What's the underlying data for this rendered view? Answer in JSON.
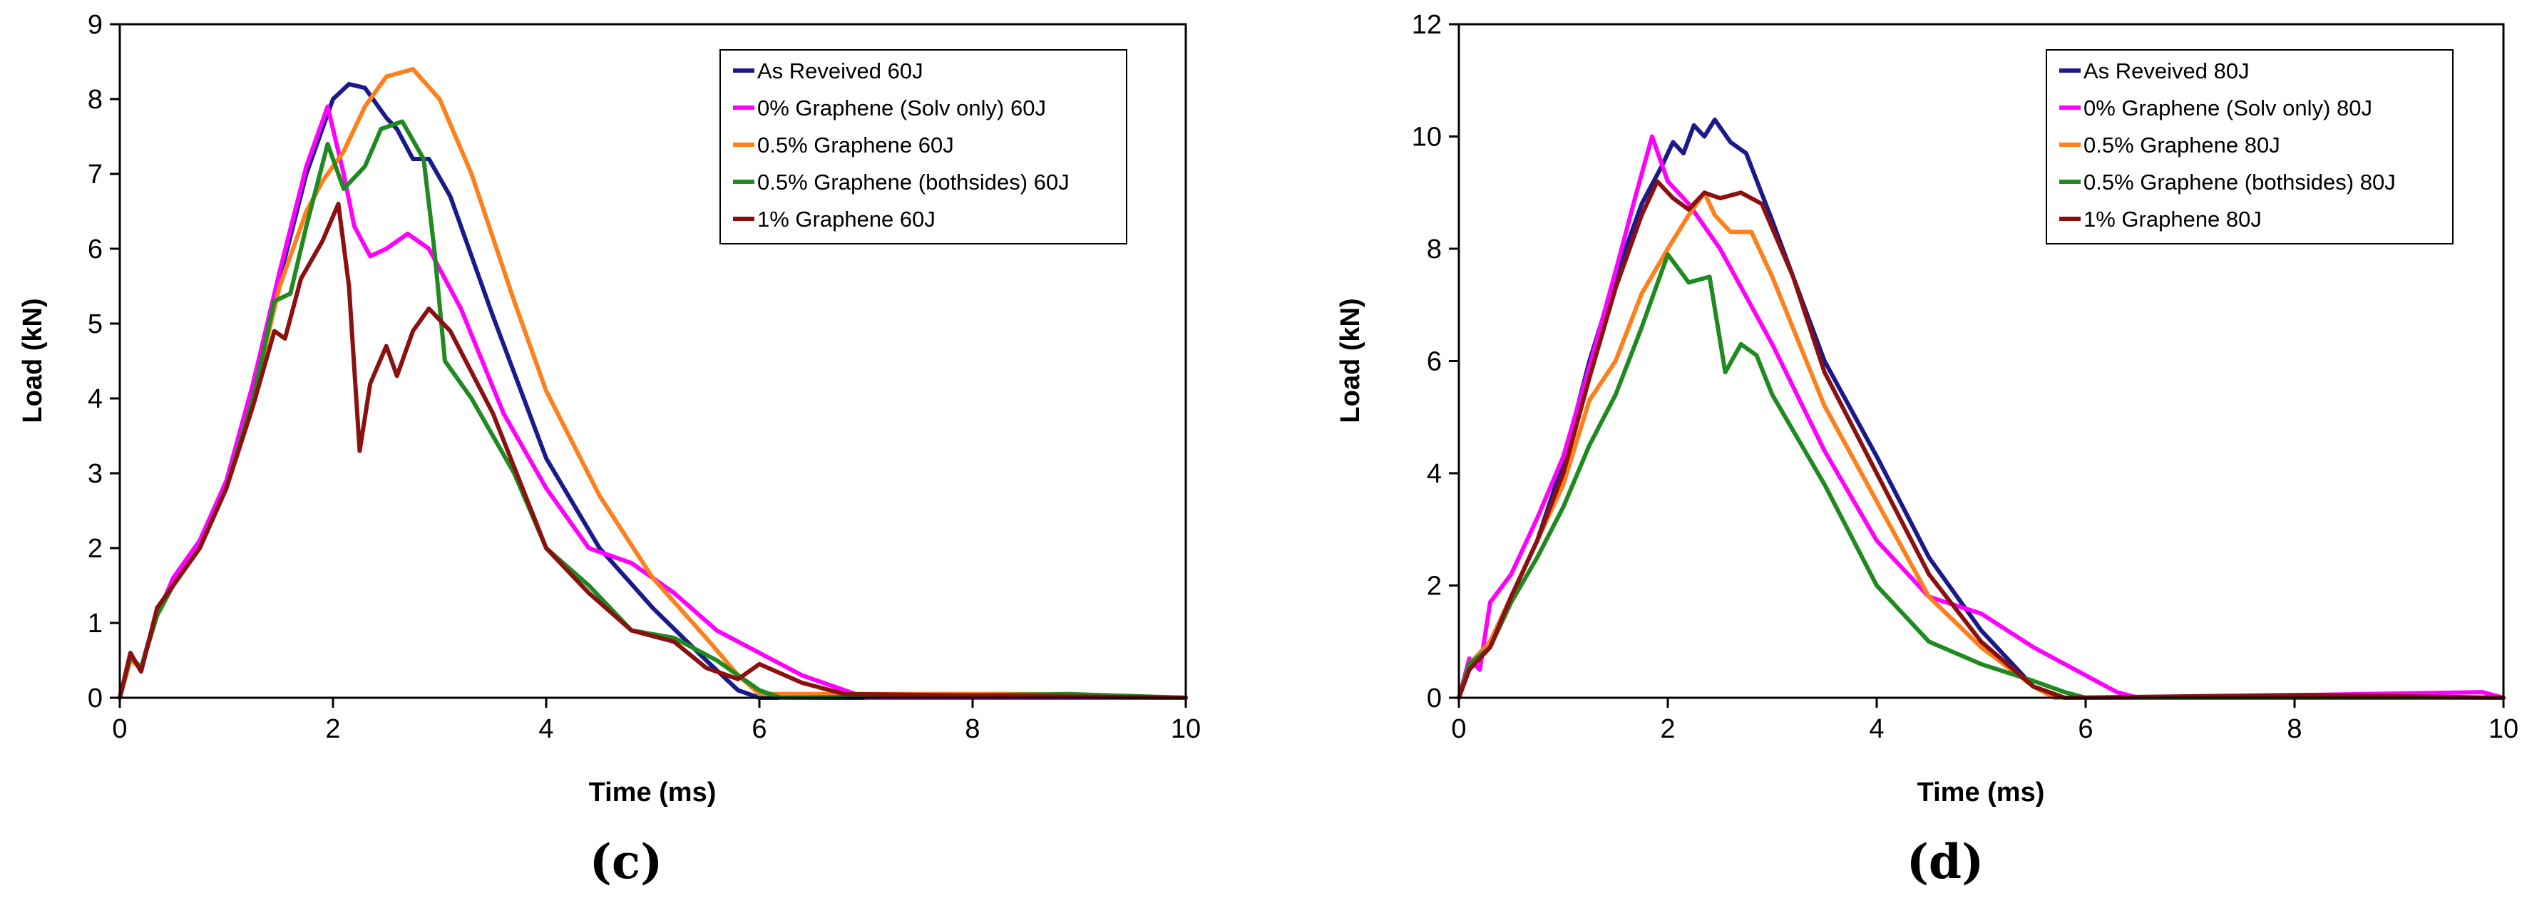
{
  "chart_data": [
    {
      "type": "line",
      "panel_label": "(c)",
      "xlabel": "Time (ms)",
      "ylabel": "Load (kN)",
      "xlim": [
        0,
        10
      ],
      "ylim": [
        0,
        9
      ],
      "xticks": [
        0,
        2,
        4,
        6,
        8,
        10
      ],
      "yticks": [
        0,
        1,
        2,
        3,
        4,
        5,
        6,
        7,
        8,
        9
      ],
      "grid": false,
      "legend_position": "top-right",
      "series": [
        {
          "name": "As Reveived 60J",
          "color": "#1a1a8c",
          "points": [
            [
              0,
              0
            ],
            [
              0.1,
              0.55
            ],
            [
              0.2,
              0.4
            ],
            [
              0.35,
              1.15
            ],
            [
              0.5,
              1.5
            ],
            [
              0.75,
              2.0
            ],
            [
              1.0,
              2.8
            ],
            [
              1.25,
              4.0
            ],
            [
              1.5,
              5.6
            ],
            [
              1.75,
              7.0
            ],
            [
              2.0,
              8.0
            ],
            [
              2.15,
              8.2
            ],
            [
              2.3,
              8.15
            ],
            [
              2.5,
              7.75
            ],
            [
              2.6,
              7.6
            ],
            [
              2.75,
              7.2
            ],
            [
              2.9,
              7.2
            ],
            [
              3.1,
              6.7
            ],
            [
              3.5,
              5.1
            ],
            [
              4.0,
              3.2
            ],
            [
              4.5,
              2.0
            ],
            [
              5.0,
              1.2
            ],
            [
              5.5,
              0.5
            ],
            [
              5.8,
              0.1
            ],
            [
              6.0,
              0.0
            ],
            [
              10,
              0.0
            ]
          ]
        },
        {
          "name": "0% Graphene (Solv only) 60J",
          "color": "#ff00ff",
          "points": [
            [
              0,
              0
            ],
            [
              0.1,
              0.5
            ],
            [
              0.2,
              0.4
            ],
            [
              0.35,
              1.1
            ],
            [
              0.5,
              1.6
            ],
            [
              0.75,
              2.1
            ],
            [
              1.0,
              2.9
            ],
            [
              1.25,
              4.2
            ],
            [
              1.5,
              5.7
            ],
            [
              1.75,
              7.1
            ],
            [
              1.95,
              7.9
            ],
            [
              2.1,
              7.0
            ],
            [
              2.2,
              6.3
            ],
            [
              2.35,
              5.9
            ],
            [
              2.5,
              6.0
            ],
            [
              2.7,
              6.2
            ],
            [
              2.9,
              6.0
            ],
            [
              3.2,
              5.2
            ],
            [
              3.6,
              3.8
            ],
            [
              4.0,
              2.8
            ],
            [
              4.4,
              2.0
            ],
            [
              4.8,
              1.8
            ],
            [
              5.2,
              1.4
            ],
            [
              5.6,
              0.9
            ],
            [
              6.0,
              0.6
            ],
            [
              6.4,
              0.3
            ],
            [
              6.8,
              0.1
            ],
            [
              7.0,
              0.0
            ],
            [
              10,
              0.0
            ]
          ]
        },
        {
          "name": "0.5% Graphene 60J",
          "color": "#ff7f1a",
          "points": [
            [
              0,
              0
            ],
            [
              0.1,
              0.5
            ],
            [
              0.2,
              0.4
            ],
            [
              0.35,
              1.1
            ],
            [
              0.5,
              1.5
            ],
            [
              0.75,
              2.0
            ],
            [
              1.0,
              2.8
            ],
            [
              1.25,
              4.0
            ],
            [
              1.5,
              5.5
            ],
            [
              1.75,
              6.5
            ],
            [
              1.9,
              6.9
            ],
            [
              2.1,
              7.3
            ],
            [
              2.3,
              7.9
            ],
            [
              2.5,
              8.3
            ],
            [
              2.75,
              8.4
            ],
            [
              3.0,
              8.0
            ],
            [
              3.3,
              7.0
            ],
            [
              3.7,
              5.3
            ],
            [
              4.0,
              4.1
            ],
            [
              4.5,
              2.7
            ],
            [
              5.0,
              1.6
            ],
            [
              5.5,
              0.8
            ],
            [
              5.8,
              0.3
            ],
            [
              6.0,
              0.05
            ],
            [
              8.5,
              0.05
            ],
            [
              10,
              0.0
            ]
          ]
        },
        {
          "name": "0.5% Graphene (bothsides) 60J",
          "color": "#1f8a1f",
          "points": [
            [
              0,
              0
            ],
            [
              0.1,
              0.55
            ],
            [
              0.2,
              0.4
            ],
            [
              0.35,
              1.1
            ],
            [
              0.5,
              1.5
            ],
            [
              0.75,
              2.0
            ],
            [
              1.0,
              2.8
            ],
            [
              1.25,
              4.0
            ],
            [
              1.45,
              5.3
            ],
            [
              1.6,
              5.4
            ],
            [
              1.75,
              6.3
            ],
            [
              1.95,
              7.4
            ],
            [
              2.1,
              6.8
            ],
            [
              2.3,
              7.1
            ],
            [
              2.45,
              7.6
            ],
            [
              2.65,
              7.7
            ],
            [
              2.85,
              7.2
            ],
            [
              2.95,
              6.0
            ],
            [
              3.05,
              4.5
            ],
            [
              3.3,
              4.0
            ],
            [
              3.7,
              3.0
            ],
            [
              4.0,
              2.0
            ],
            [
              4.4,
              1.5
            ],
            [
              4.8,
              0.9
            ],
            [
              5.2,
              0.8
            ],
            [
              5.6,
              0.5
            ],
            [
              6.0,
              0.1
            ],
            [
              6.2,
              0.0
            ],
            [
              8.9,
              0.05
            ],
            [
              10,
              0.0
            ]
          ]
        },
        {
          "name": "1% Graphene 60J",
          "color": "#8b1111",
          "points": [
            [
              0,
              0
            ],
            [
              0.1,
              0.6
            ],
            [
              0.2,
              0.35
            ],
            [
              0.35,
              1.2
            ],
            [
              0.5,
              1.5
            ],
            [
              0.75,
              2.0
            ],
            [
              1.0,
              2.8
            ],
            [
              1.25,
              3.9
            ],
            [
              1.45,
              4.9
            ],
            [
              1.55,
              4.8
            ],
            [
              1.7,
              5.6
            ],
            [
              1.9,
              6.1
            ],
            [
              2.05,
              6.6
            ],
            [
              2.15,
              5.5
            ],
            [
              2.25,
              3.3
            ],
            [
              2.35,
              4.2
            ],
            [
              2.5,
              4.7
            ],
            [
              2.6,
              4.3
            ],
            [
              2.75,
              4.9
            ],
            [
              2.9,
              5.2
            ],
            [
              3.1,
              4.9
            ],
            [
              3.5,
              3.8
            ],
            [
              4.0,
              2.0
            ],
            [
              4.4,
              1.4
            ],
            [
              4.8,
              0.9
            ],
            [
              5.2,
              0.75
            ],
            [
              5.5,
              0.4
            ],
            [
              5.8,
              0.25
            ],
            [
              6.0,
              0.45
            ],
            [
              6.4,
              0.2
            ],
            [
              6.8,
              0.05
            ],
            [
              10,
              0.0
            ]
          ]
        }
      ]
    },
    {
      "type": "line",
      "panel_label": "(d)",
      "xlabel": "Time (ms)",
      "ylabel": "Load (kN)",
      "xlim": [
        0,
        10
      ],
      "ylim": [
        0,
        12
      ],
      "xticks": [
        0,
        2,
        4,
        6,
        8,
        10
      ],
      "yticks": [
        0,
        2,
        4,
        6,
        8,
        10,
        12
      ],
      "grid": false,
      "legend_position": "top-right",
      "series": [
        {
          "name": "As Reveived 80J",
          "color": "#1a1a8c",
          "points": [
            [
              0,
              0
            ],
            [
              0.1,
              0.6
            ],
            [
              0.3,
              1.0
            ],
            [
              0.5,
              1.8
            ],
            [
              0.75,
              2.8
            ],
            [
              1.0,
              4.2
            ],
            [
              1.25,
              6.0
            ],
            [
              1.5,
              7.5
            ],
            [
              1.75,
              8.8
            ],
            [
              1.95,
              9.5
            ],
            [
              2.05,
              9.9
            ],
            [
              2.15,
              9.7
            ],
            [
              2.25,
              10.2
            ],
            [
              2.35,
              10.0
            ],
            [
              2.45,
              10.3
            ],
            [
              2.6,
              9.9
            ],
            [
              2.75,
              9.7
            ],
            [
              3.0,
              8.5
            ],
            [
              3.5,
              6.0
            ],
            [
              4.0,
              4.3
            ],
            [
              4.5,
              2.5
            ],
            [
              5.0,
              1.2
            ],
            [
              5.5,
              0.2
            ],
            [
              5.8,
              0.0
            ],
            [
              10,
              0.0
            ]
          ]
        },
        {
          "name": "0% Graphene (Solv only) 80J",
          "color": "#ff00ff",
          "points": [
            [
              0,
              0
            ],
            [
              0.1,
              0.7
            ],
            [
              0.2,
              0.5
            ],
            [
              0.3,
              1.7
            ],
            [
              0.5,
              2.2
            ],
            [
              0.75,
              3.2
            ],
            [
              1.0,
              4.3
            ],
            [
              1.25,
              5.9
            ],
            [
              1.5,
              7.6
            ],
            [
              1.7,
              9.0
            ],
            [
              1.85,
              10.0
            ],
            [
              2.0,
              9.2
            ],
            [
              2.2,
              8.8
            ],
            [
              2.5,
              8.0
            ],
            [
              3.0,
              6.3
            ],
            [
              3.5,
              4.4
            ],
            [
              4.0,
              2.8
            ],
            [
              4.5,
              1.8
            ],
            [
              5.0,
              1.5
            ],
            [
              5.5,
              0.9
            ],
            [
              6.0,
              0.4
            ],
            [
              6.3,
              0.1
            ],
            [
              6.5,
              0.0
            ],
            [
              9.8,
              0.1
            ],
            [
              10,
              0.0
            ]
          ]
        },
        {
          "name": "0.5% Graphene 80J",
          "color": "#ff7f1a",
          "points": [
            [
              0,
              0
            ],
            [
              0.1,
              0.6
            ],
            [
              0.3,
              1.0
            ],
            [
              0.5,
              1.8
            ],
            [
              0.75,
              2.8
            ],
            [
              1.0,
              3.8
            ],
            [
              1.25,
              5.3
            ],
            [
              1.5,
              6.0
            ],
            [
              1.75,
              7.2
            ],
            [
              2.0,
              8.0
            ],
            [
              2.2,
              8.6
            ],
            [
              2.35,
              9.0
            ],
            [
              2.45,
              8.6
            ],
            [
              2.6,
              8.3
            ],
            [
              2.8,
              8.3
            ],
            [
              3.0,
              7.5
            ],
            [
              3.5,
              5.2
            ],
            [
              4.0,
              3.5
            ],
            [
              4.5,
              1.8
            ],
            [
              5.0,
              0.9
            ],
            [
              5.5,
              0.2
            ],
            [
              5.7,
              0.0
            ],
            [
              10,
              0.0
            ]
          ]
        },
        {
          "name": "0.5% Graphene (bothsides) 80J",
          "color": "#1f8a1f",
          "points": [
            [
              0,
              0
            ],
            [
              0.1,
              0.6
            ],
            [
              0.3,
              0.9
            ],
            [
              0.5,
              1.7
            ],
            [
              0.75,
              2.5
            ],
            [
              1.0,
              3.4
            ],
            [
              1.25,
              4.5
            ],
            [
              1.5,
              5.4
            ],
            [
              1.75,
              6.6
            ],
            [
              2.0,
              7.9
            ],
            [
              2.2,
              7.4
            ],
            [
              2.4,
              7.5
            ],
            [
              2.55,
              5.8
            ],
            [
              2.7,
              6.3
            ],
            [
              2.85,
              6.1
            ],
            [
              3.0,
              5.4
            ],
            [
              3.5,
              3.8
            ],
            [
              4.0,
              2.0
            ],
            [
              4.5,
              1.0
            ],
            [
              5.0,
              0.6
            ],
            [
              5.5,
              0.3
            ],
            [
              5.8,
              0.1
            ],
            [
              6.0,
              0.0
            ],
            [
              10,
              0.0
            ]
          ]
        },
        {
          "name": "1% Graphene 80J",
          "color": "#8b1111",
          "points": [
            [
              0,
              0
            ],
            [
              0.1,
              0.5
            ],
            [
              0.3,
              0.9
            ],
            [
              0.5,
              1.8
            ],
            [
              0.75,
              2.8
            ],
            [
              1.0,
              4.0
            ],
            [
              1.25,
              5.7
            ],
            [
              1.5,
              7.3
            ],
            [
              1.75,
              8.6
            ],
            [
              1.9,
              9.2
            ],
            [
              2.05,
              8.9
            ],
            [
              2.2,
              8.7
            ],
            [
              2.35,
              9.0
            ],
            [
              2.5,
              8.9
            ],
            [
              2.7,
              9.0
            ],
            [
              2.9,
              8.8
            ],
            [
              3.2,
              7.5
            ],
            [
              3.5,
              5.8
            ],
            [
              4.0,
              4.0
            ],
            [
              4.5,
              2.2
            ],
            [
              5.0,
              1.0
            ],
            [
              5.5,
              0.2
            ],
            [
              5.8,
              0.0
            ],
            [
              8.1,
              0.05
            ],
            [
              10,
              0.0
            ]
          ]
        }
      ]
    }
  ]
}
